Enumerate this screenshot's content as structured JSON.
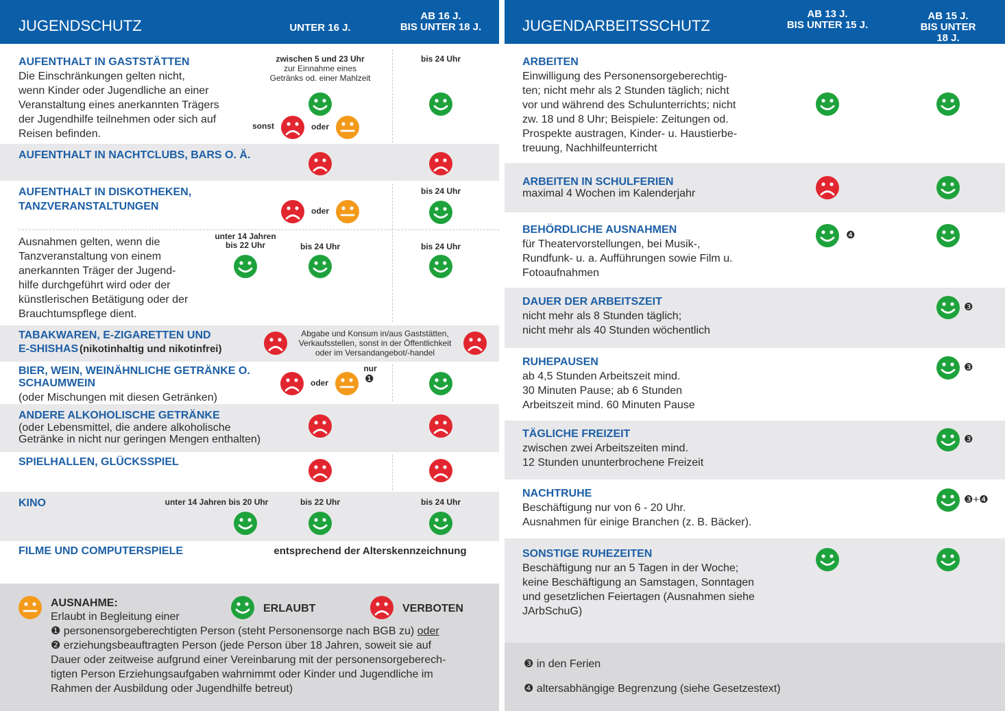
{
  "left": {
    "header": {
      "title": "JUGENDSCHUTZ",
      "col1": "UNTER 16 J.",
      "col2": [
        "AB 16 J.",
        "BIS UNTER 18 J."
      ]
    },
    "rows": [
      {
        "title": "AUFENTHALT IN GASTSTÄTTEN",
        "text": [
          "Die Einschränkungen gelten nicht,",
          "wenn Kinder oder Jugendliche an einer",
          "Veranstaltung eines anerkannten Trägers",
          "der Jugendhilfe teilnehmen oder sich auf",
          "Reisen befinden."
        ],
        "col1_label": "zwischen 5 und 23 Uhr",
        "col1_note": [
          "zur Einnahme eines",
          "Getränks od. einer Mahlzeit"
        ],
        "otherwise": "sonst",
        "or": "oder",
        "col2_label": "bis 24 Uhr"
      },
      {
        "title": "AUFENTHALT IN NACHTCLUBS, BARS O. Ä."
      },
      {
        "title": [
          "AUFENTHALT IN DISKOTHEKEN,",
          "TANZVERANSTALTUNGEN"
        ],
        "or": "oder",
        "col2_label": "bis 24 Uhr"
      },
      {
        "text": [
          "Ausnahmen gelten, wenn die",
          "Tanzveranstaltung von einem",
          "anerkannten Träger der Jugend-",
          "hilfe durchgeführt wird oder der",
          "künstlerischen Betätigung oder der",
          "Brauchtumspflege dient."
        ],
        "col0_label": [
          "unter 14 Jahren",
          "bis 22 Uhr"
        ],
        "col1_label": "bis 24 Uhr",
        "col2_label": "bis 24 Uhr"
      },
      {
        "title": [
          "TABAKWAREN, E-ZIGARETTEN UND",
          "E-SHISHAS"
        ],
        "title_note": "(nikotinhaltig und nikotinfrei)",
        "note": [
          "Abgabe und Konsum in/aus Gaststätten,",
          "Verkaufsstellen, sonst in der Öffentlichkeit",
          "oder im Versandangebot/-handel"
        ]
      },
      {
        "title": [
          "BIER, WEIN, WEINÄHNLICHE GETRÄNKE O.",
          "SCHAUMWEIN"
        ],
        "text": "(oder Mischungen mit diesen Getränken)",
        "or": "oder",
        "only": "nur",
        "marker": "❶"
      },
      {
        "title": "ANDERE ALKOHOLISCHE GETRÄNKE",
        "text": [
          "(oder Lebensmittel, die andere alkoholische",
          "Getränke in nicht nur geringen Mengen enthalten)"
        ]
      },
      {
        "title": "SPIELHALLEN, GLÜCKSSPIEL"
      },
      {
        "title": "KINO",
        "col0_label": "unter 14 Jahren bis 20 Uhr",
        "col1_label": "bis 22 Uhr",
        "col2_label": "bis 24 Uhr"
      },
      {
        "title": "FILME UND COMPUTERSPIELE",
        "note": "entsprechend der Alterskennzeichnung"
      }
    ],
    "legend": {
      "exception_title": "AUSNAHME:",
      "exception_intro": "Erlaubt in Begleitung einer",
      "exception_1": "❶ personensorgeberechtigten Person (steht Personensorge nach BGB zu) ",
      "exception_or": "oder",
      "exception_2": [
        "❷ erziehungsbeauftragten Person (jede Person über 18 Jahren, soweit sie auf",
        "Dauer oder zeitweise aufgrund einer Vereinbarung mit der personensorgeberech-",
        "tigten Person Erziehungsaufgaben wahrnimmt oder Kinder und Jugendliche im",
        "Rahmen der Ausbildung oder Jugendhilfe betreut)"
      ],
      "allowed": "ERLAUBT",
      "forbidden": "VERBOTEN"
    }
  },
  "right": {
    "header": {
      "title": "JUGENDARBEITSSCHUTZ",
      "col1": [
        "AB 13 J.",
        "BIS UNTER 15 J."
      ],
      "col2": [
        "AB 15 J.",
        "BIS UNTER 18 J."
      ]
    },
    "rows": [
      {
        "title": "ARBEITEN",
        "text": [
          "Einwilligung des Personensorgeberechtig-",
          "ten; nicht mehr als 2 Stunden täglich; nicht",
          "vor und während des Schulunterrichts; nicht",
          "zw. 18 und 8 Uhr; Beispiele: Zeitungen od.",
          "Prospekte austragen, Kinder- u. Haustierbe-",
          "treuung, Nachhilfeunterricht"
        ]
      },
      {
        "title": "ARBEITEN IN SCHULFERIEN",
        "text": "maximal 4 Wochen im Kalenderjahr"
      },
      {
        "title": "BEHÖRDLICHE AUSNAHMEN",
        "text": [
          "für Theatervorstellungen, bei Musik-,",
          "Rundfunk- u. a. Aufführungen sowie Film u.",
          "Fotoaufnahmen"
        ],
        "col1_marker": "❹"
      },
      {
        "title": "DAUER DER ARBEITSZEIT",
        "text": [
          "nicht mehr als 8 Stunden täglich;",
          "nicht mehr als 40 Stunden wöchentlich"
        ],
        "col2_marker": "❸"
      },
      {
        "title": "RUHEPAUSEN",
        "text": [
          "ab 4,5 Stunden Arbeitszeit mind.",
          "30 Minuten Pause; ab 6 Stunden",
          "Arbeitszeit mind. 60 Minuten Pause"
        ],
        "col2_marker": "❸"
      },
      {
        "title": "TÄGLICHE FREIZEIT",
        "text": [
          "zwischen zwei Arbeitszeiten mind.",
          "12 Stunden ununterbrochene Freizeit"
        ],
        "col2_marker": "❸"
      },
      {
        "title": "NACHTRUHE",
        "text": [
          "Beschäftigung nur von 6 - 20 Uhr.",
          "Ausnahmen für einige Branchen (z. B. Bäcker)."
        ],
        "col2_marker": "❸+❹"
      },
      {
        "title": "SONSTIGE RUHEZEITEN",
        "text": [
          "Beschäftigung nur an 5 Tagen in der Woche;",
          "keine Beschäftigung an Samstagen, Sonntagen",
          "und gesetzlichen Feiertagen (Ausnahmen siehe",
          "JArbSchuG)"
        ]
      }
    ],
    "footnotes": [
      "❸ in den Ferien",
      "❹ altersabhängige Begrenzung (siehe Gesetzestext)"
    ]
  }
}
